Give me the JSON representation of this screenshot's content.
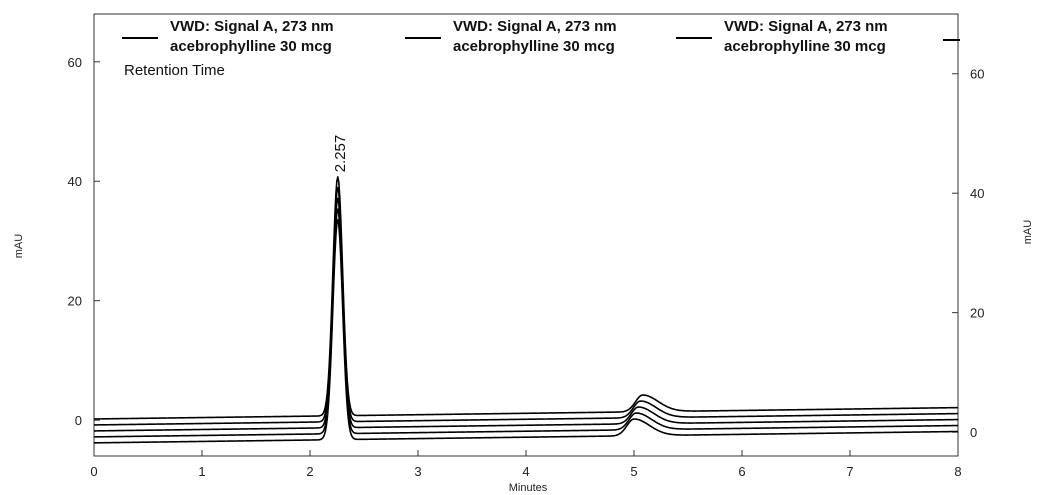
{
  "chart_data": {
    "type": "line",
    "xlabel": "Minutes",
    "ylabel_left": "mAU",
    "ylabel_right": "mAU",
    "xlim": [
      0,
      8
    ],
    "ylim": [
      -6,
      68
    ],
    "x_ticks": [
      "0",
      "1",
      "2",
      "3",
      "4",
      "5",
      "6",
      "7",
      "8"
    ],
    "y_ticks_left": [
      "0",
      "20",
      "40",
      "60"
    ],
    "y_ticks_right": [
      "0",
      "20",
      "40",
      "60"
    ],
    "y_offset_right": -2,
    "legend": [
      {
        "line1": "VWD: Signal A, 273 nm",
        "line2": "acebrophylline 30 mcg"
      },
      {
        "line1": "VWD: Signal A, 273 nm",
        "line2": "acebrophylline 30 mcg"
      },
      {
        "line1": "VWD: Signal A, 273 nm",
        "line2": "acebrophylline 30 mcg"
      }
    ],
    "legend_placement": "top",
    "subtitle": "Retention Time",
    "peak_label": "2.257",
    "peak_label_x": 2.257,
    "peak_label_y": 41.5,
    "grid": false,
    "series": [
      {
        "baseline_start": 0.2,
        "baseline_end": 2.1,
        "peak_x": 2.257,
        "peak_height": 40.0,
        "bump_x": 5.08,
        "bump_height": 2.8
      },
      {
        "baseline_start": -0.8,
        "baseline_end": 1.1,
        "peak_x": 2.257,
        "peak_height": 39.2,
        "bump_x": 5.06,
        "bump_height": 2.8
      },
      {
        "baseline_start": -1.8,
        "baseline_end": 0.1,
        "peak_x": 2.257,
        "peak_height": 38.4,
        "bump_x": 5.04,
        "bump_height": 2.8
      },
      {
        "baseline_start": -2.8,
        "baseline_end": -0.9,
        "peak_x": 2.257,
        "peak_height": 37.6,
        "bump_x": 5.02,
        "bump_height": 2.8
      },
      {
        "baseline_start": -3.8,
        "baseline_end": -1.9,
        "peak_x": 2.257,
        "peak_height": 36.8,
        "bump_x": 5.0,
        "bump_height": 2.8
      }
    ]
  }
}
